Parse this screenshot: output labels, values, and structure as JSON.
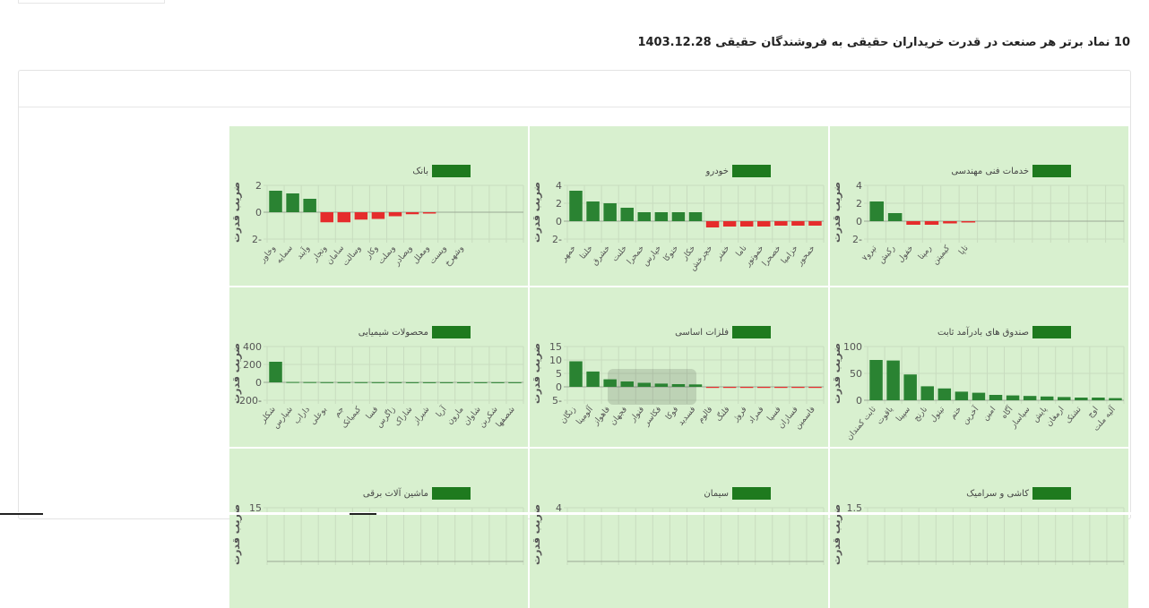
{
  "page": {
    "title": "10 نماد برتر هر صنعت در قدرت خریداران حقیقی به فروشندگان حقیقی 1403.12.28"
  },
  "colors": {
    "panel_bg": "#d8f0cf",
    "positive": "#2a8332",
    "negative": "#e52c2c",
    "legend": "#1e7a1e",
    "axis_text": "#555555"
  },
  "shared": {
    "ylabel": "ضریب قدرت"
  },
  "chart_data": [
    {
      "type": "bar",
      "title": "خدمات فنی مهندسی",
      "ylabel": "ضریب قدرت",
      "ylim": [
        -2,
        4
      ],
      "yticks": [
        4,
        2,
        0,
        -2
      ],
      "ytick_labels": [
        "4",
        "2",
        "0",
        "2-"
      ],
      "categories": [
        "تپرو۷",
        "رکیش",
        "خفول",
        "رمپنا",
        "کیمیتن",
        "تاپا"
      ],
      "values": [
        2.2,
        0.9,
        -0.4,
        -0.4,
        -0.25,
        -0.15
      ],
      "n_slots": 14
    },
    {
      "type": "bar",
      "title": "خودرو",
      "ylabel": "ضریب قدرت",
      "ylim": [
        -2,
        4
      ],
      "yticks": [
        4,
        2,
        0,
        -2
      ],
      "ytick_labels": [
        "4",
        "2",
        "0",
        "2-"
      ],
      "categories": [
        "خمهر",
        "خلنتا",
        "خشرق",
        "خلنت",
        "خمحرا",
        "خپارس",
        "ختوکا",
        "خکار",
        "خچرخش",
        "خفنر",
        "ناما",
        "خموتور",
        "خصحرا",
        "خزامیا",
        "خمحور"
      ],
      "values": [
        3.4,
        2.2,
        2.0,
        1.5,
        1.0,
        1.0,
        1.0,
        1.0,
        -0.7,
        -0.6,
        -0.6,
        -0.6,
        -0.5,
        -0.5,
        -0.5
      ],
      "n_slots": 15
    },
    {
      "type": "bar",
      "title": "بانک",
      "ylabel": "ضریب قدرت",
      "ylim": [
        -2,
        2
      ],
      "yticks": [
        2,
        0,
        -2
      ],
      "ytick_labels": [
        "2",
        "0",
        "2-"
      ],
      "categories": [
        "وخاور",
        "سمایه",
        "وآیند",
        "وتجار",
        "سامان",
        "وسالت",
        "وکار",
        "وبملت",
        "وپصادر",
        "ومعلل",
        "وپست",
        "وشهرخ"
      ],
      "values": [
        1.6,
        1.4,
        1.0,
        -0.75,
        -0.75,
        -0.55,
        -0.5,
        -0.3,
        -0.15,
        -0.1,
        0,
        0
      ],
      "n_slots": 15
    },
    {
      "type": "bar",
      "title": "صندوق های بادرآمد ثابت",
      "ylabel": "ضریب قدرت",
      "ylim": [
        0,
        100
      ],
      "yticks": [
        100,
        50,
        0
      ],
      "ytick_labels": [
        "100",
        "50",
        "0"
      ],
      "categories": [
        "ثابت کمندان",
        "یاقوت",
        "سپینا",
        "نارنج",
        "تیتول",
        "ختم",
        "آخرین",
        "امین",
        "آگاه",
        "سپاسار",
        "پایش",
        "ارمغان",
        "تشتک",
        "اوج",
        "آلیه ملت"
      ],
      "values": [
        75,
        74,
        48,
        26,
        22,
        16,
        14,
        10,
        9,
        8,
        7,
        6,
        5,
        5,
        4
      ],
      "n_slots": 15
    },
    {
      "type": "bar",
      "title": "فلزات اساسی",
      "ylabel": "ضریب قدرت",
      "ylim": [
        -5,
        15
      ],
      "yticks": [
        15,
        10,
        5,
        0,
        -5
      ],
      "ytick_labels": [
        "15",
        "10",
        "5",
        "0",
        "5-"
      ],
      "categories": [
        "زنگان",
        "آلومینا",
        "فاهواز",
        "فجهان",
        "فنوار",
        "فکاسر",
        "فوکا",
        "فسدید",
        "فالوم",
        "فلنگ",
        "فروژ",
        "فمراد",
        "فسپا",
        "فسازان",
        "فاسمین"
      ],
      "values": [
        9.5,
        5.7,
        2.8,
        2.0,
        1.5,
        1.2,
        1.0,
        0.9,
        -0.4,
        -0.4,
        -0.4,
        -0.4,
        -0.4,
        -0.4,
        -0.4
      ],
      "n_slots": 15
    },
    {
      "type": "bar",
      "title": "محصولات شیمیایی",
      "ylabel": "ضریب قدرت",
      "ylim": [
        -200,
        400
      ],
      "yticks": [
        400,
        200,
        0,
        -200
      ],
      "ytick_labels": [
        "400",
        "200",
        "0",
        "200-"
      ],
      "categories": [
        "شکلر",
        "شپارس",
        "داراب",
        "بوعلی",
        "جم",
        "کیمیاتک",
        "فسا",
        "زاگرس",
        "شاراک",
        "شیراز",
        "آریا",
        "مارون",
        "شاوان",
        "شکربن",
        "شصفها"
      ],
      "values": [
        230,
        4,
        3,
        2,
        2,
        2,
        1.5,
        1.5,
        1,
        1,
        1,
        1,
        1,
        1,
        1
      ],
      "n_slots": 15
    },
    {
      "type": "bar",
      "title": "کاشی و سرامیک",
      "ylabel": "ضریب قدرت",
      "ylim": [
        0,
        1.5
      ],
      "yticks": [
        1.5
      ],
      "ytick_labels": [
        "1.5"
      ],
      "categories": [],
      "values": [],
      "n_slots": 15
    },
    {
      "type": "bar",
      "title": "سیمان",
      "ylabel": "ضریب قدرت",
      "ylim": [
        0,
        4
      ],
      "yticks": [
        4
      ],
      "ytick_labels": [
        "4"
      ],
      "categories": [],
      "values": [],
      "n_slots": 15
    },
    {
      "type": "bar",
      "title": "ماشین آلات برقی",
      "ylabel": "ضریب قدرت",
      "ylim": [
        0,
        15
      ],
      "yticks": [
        15
      ],
      "ytick_labels": [
        "15"
      ],
      "categories": [],
      "values": [],
      "n_slots": 15
    }
  ]
}
